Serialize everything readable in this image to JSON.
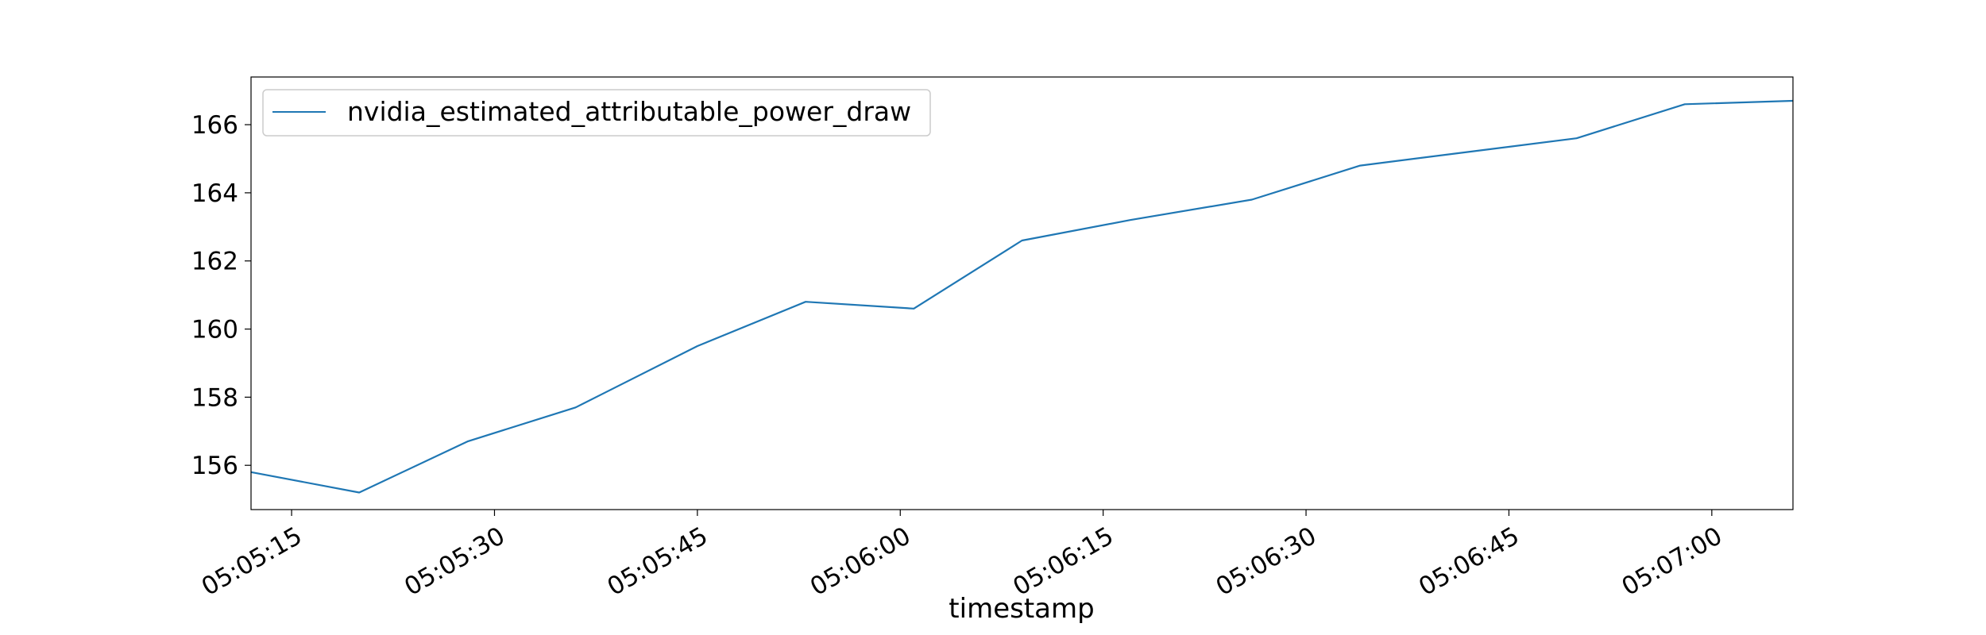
{
  "chart_data": {
    "type": "line",
    "title": "",
    "xlabel": "timestamp",
    "ylabel": "",
    "x_ticks": [
      "05:05:15",
      "05:05:30",
      "05:05:45",
      "05:06:00",
      "05:06:15",
      "05:06:30",
      "05:06:45",
      "05:07:00"
    ],
    "y_ticks": [
      156,
      158,
      160,
      162,
      164,
      166
    ],
    "xlim": [
      "05:05:12",
      "05:07:06"
    ],
    "ylim": [
      154.7,
      167.4
    ],
    "grid": false,
    "legend": "upper-left",
    "series": [
      {
        "name": "nvidia_estimated_attributable_power_draw",
        "color": "#1f77b4",
        "x": [
          "05:05:12",
          "05:05:20",
          "05:05:28",
          "05:05:36",
          "05:05:45",
          "05:05:53",
          "05:06:01",
          "05:06:09",
          "05:06:17",
          "05:06:26",
          "05:06:34",
          "05:06:42",
          "05:06:50",
          "05:06:58",
          "05:07:06"
        ],
        "values": [
          155.8,
          155.2,
          156.7,
          157.7,
          159.5,
          160.8,
          160.6,
          162.6,
          163.2,
          163.8,
          164.8,
          165.2,
          165.6,
          166.6,
          166.7
        ]
      }
    ]
  }
}
